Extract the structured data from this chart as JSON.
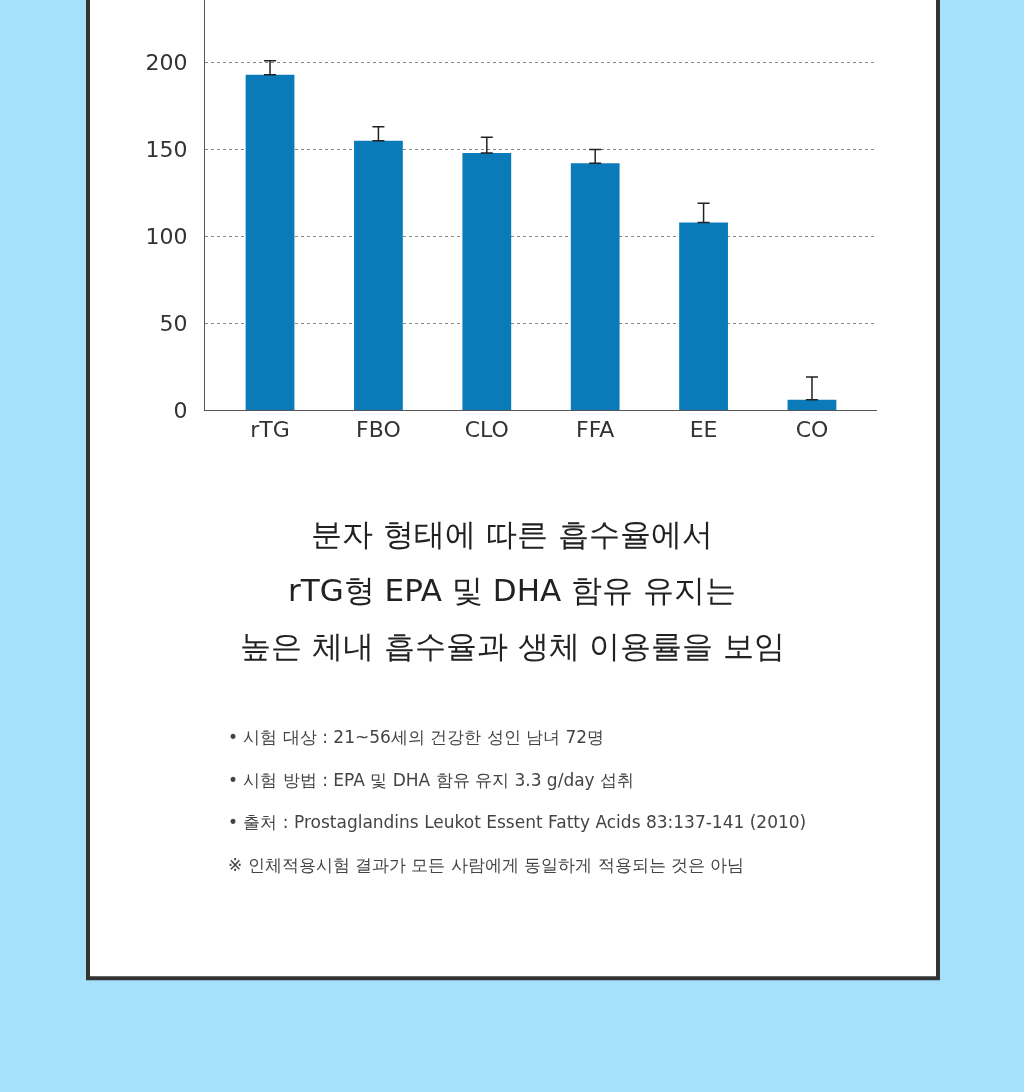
{
  "chart_data": {
    "type": "bar",
    "title": "분자 형태에 따른 흡수율에서\nrTG형 EPA 및 DHA 함유 유지는\n높은 체내 흡수율과 생체 이용률을 보임",
    "categories": [
      "rTG",
      "FBO",
      "CLO",
      "FFA",
      "EE",
      "CO"
    ],
    "values": [
      193,
      155,
      148,
      142,
      108,
      6
    ],
    "errors": [
      [
        193,
        201
      ],
      [
        155,
        163
      ],
      [
        148,
        157
      ],
      [
        142,
        150
      ],
      [
        108,
        119
      ],
      [
        6,
        19
      ]
    ],
    "color": "#0a7bb8",
    "ylim": [
      0,
      236
    ],
    "yticks": [
      0,
      50,
      100,
      150,
      200
    ],
    "grid": "y",
    "legend": false,
    "annotations": [
      "• 시험 대상 : 21~56세의 건강한 성인 남녀 72명",
      "• 시험 방법 : EPA 및 DHA 함유 유지 3.3 g/day 섭취",
      "• 출처 : Prostaglandins Leukot Essent Fatty Acids 83:137-141 (2010)",
      "※ 인체적용시험 결과가 모든 사람에게 동일하게 적용되는 것은 아님"
    ]
  }
}
